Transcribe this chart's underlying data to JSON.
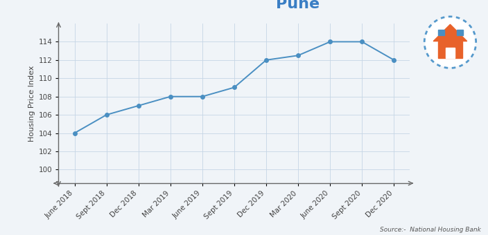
{
  "x_labels": [
    "June 2018",
    "Sept 2018",
    "Dec 2018",
    "Mar 2019",
    "June 2019",
    "Sept 2019",
    "Dec 2019",
    "Mar 2020",
    "June 2020",
    "Sept 2020",
    "Dec 2020"
  ],
  "y_values": [
    104.0,
    106.0,
    107.0,
    108.0,
    108.0,
    109.0,
    112.0,
    112.5,
    114.0,
    114.0,
    112.0
  ],
  "line_color": "#4a8fc2",
  "marker_color": "#4a8fc2",
  "title": "Pune",
  "title_color": "#3a7ec4",
  "ylabel": "Housing Price Index",
  "ylim": [
    98.5,
    116
  ],
  "yticks": [
    100,
    102,
    104,
    106,
    108,
    110,
    112,
    114
  ],
  "background_color": "#f0f4f8",
  "grid_color": "#c5d5e5",
  "source_text": "Source:-  National Housing Bank",
  "title_fontsize": 16,
  "label_fontsize": 8,
  "tick_fontsize": 7.5
}
